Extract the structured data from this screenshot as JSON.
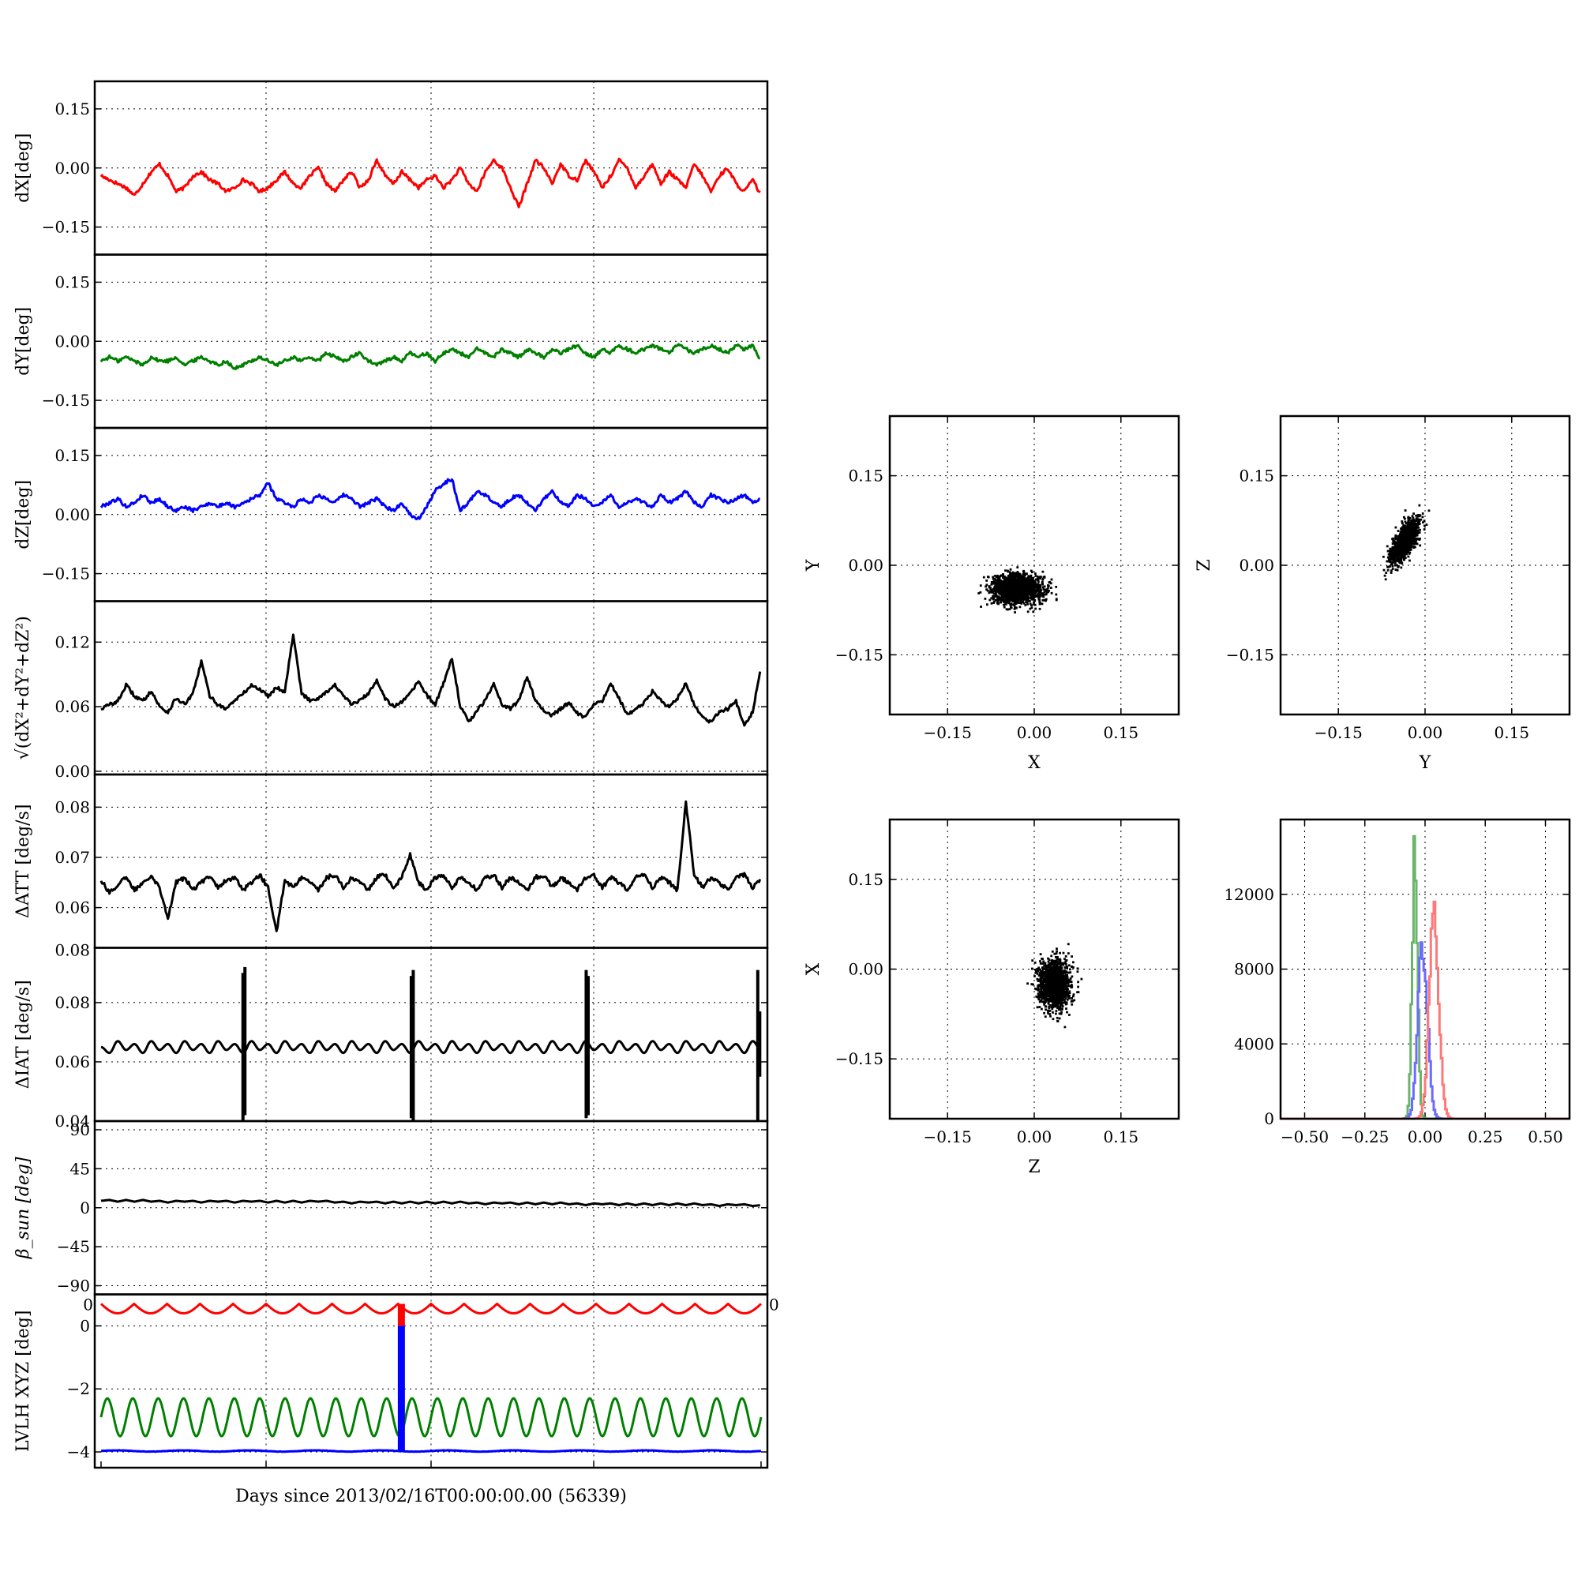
{
  "chart_data": [
    {
      "id": "dx",
      "type": "line",
      "ylabel": "dX[deg]",
      "ylim": [
        -0.22,
        0.22
      ],
      "yticks": [
        0.15,
        0.0,
        -0.15
      ],
      "ytick_labels": [
        "0.15",
        "0.00",
        "−0.15"
      ],
      "grid": true,
      "series": [
        {
          "color": "#ff0000",
          "values": [
            -0.02,
            -0.03,
            -0.04,
            -0.05,
            -0.07,
            -0.04,
            -0.01,
            0.01,
            -0.02,
            -0.06,
            -0.05,
            -0.02,
            -0.01,
            -0.03,
            -0.04,
            -0.06,
            -0.05,
            -0.03,
            -0.04,
            -0.06,
            -0.05,
            -0.03,
            -0.01,
            -0.04,
            -0.05,
            -0.02,
            0.0,
            -0.04,
            -0.06,
            -0.03,
            -0.01,
            -0.05,
            -0.03,
            0.02,
            -0.02,
            -0.04,
            -0.01,
            -0.03,
            -0.05,
            -0.03,
            -0.02,
            -0.05,
            -0.03,
            0.0,
            -0.04,
            -0.06,
            -0.01,
            0.02,
            0.0,
            -0.05,
            -0.1,
            -0.04,
            0.02,
            0.0,
            -0.04,
            0.01,
            -0.02,
            -0.03,
            0.02,
            -0.01,
            -0.05,
            -0.02,
            0.02,
            0.0,
            -0.05,
            -0.02,
            0.01,
            -0.04,
            -0.01,
            -0.03,
            -0.05,
            0.01,
            -0.02,
            -0.06,
            -0.02,
            0.0,
            -0.04,
            -0.06,
            -0.03,
            -0.07
          ]
        }
      ]
    },
    {
      "id": "dy",
      "type": "line",
      "ylabel": "dY[deg]",
      "ylim": [
        -0.22,
        0.22
      ],
      "yticks": [
        0.15,
        0.0,
        -0.15
      ],
      "ytick_labels": [
        "0.15",
        "0.00",
        "−0.15"
      ],
      "grid": true,
      "series": [
        {
          "color": "#008000",
          "values": [
            -0.05,
            -0.04,
            -0.05,
            -0.04,
            -0.05,
            -0.06,
            -0.04,
            -0.05,
            -0.05,
            -0.04,
            -0.06,
            -0.05,
            -0.04,
            -0.05,
            -0.06,
            -0.05,
            -0.07,
            -0.06,
            -0.05,
            -0.04,
            -0.05,
            -0.06,
            -0.05,
            -0.04,
            -0.05,
            -0.04,
            -0.05,
            -0.03,
            -0.04,
            -0.05,
            -0.04,
            -0.03,
            -0.05,
            -0.06,
            -0.05,
            -0.04,
            -0.05,
            -0.03,
            -0.04,
            -0.03,
            -0.05,
            -0.03,
            -0.02,
            -0.03,
            -0.04,
            -0.02,
            -0.03,
            -0.04,
            -0.02,
            -0.03,
            -0.04,
            -0.02,
            -0.03,
            -0.04,
            -0.02,
            -0.03,
            -0.02,
            -0.01,
            -0.03,
            -0.04,
            -0.02,
            -0.03,
            -0.01,
            -0.02,
            -0.03,
            -0.02,
            -0.01,
            -0.02,
            -0.03,
            -0.01,
            -0.02,
            -0.03,
            -0.02,
            -0.01,
            -0.02,
            -0.03,
            -0.01,
            -0.02,
            -0.01,
            -0.05
          ]
        }
      ]
    },
    {
      "id": "dz",
      "type": "line",
      "ylabel": "dZ[deg]",
      "ylim": [
        -0.22,
        0.22
      ],
      "yticks": [
        0.15,
        0.0,
        -0.15
      ],
      "ytick_labels": [
        "0.15",
        "0.00",
        "−0.15"
      ],
      "grid": true,
      "series": [
        {
          "color": "#0000ff",
          "values": [
            0.02,
            0.03,
            0.04,
            0.02,
            0.03,
            0.05,
            0.03,
            0.04,
            0.02,
            0.01,
            0.02,
            0.01,
            0.02,
            0.03,
            0.02,
            0.03,
            0.02,
            0.03,
            0.04,
            0.05,
            0.08,
            0.04,
            0.03,
            0.02,
            0.04,
            0.03,
            0.05,
            0.04,
            0.03,
            0.05,
            0.04,
            0.02,
            0.03,
            0.04,
            0.02,
            0.01,
            0.03,
            0.0,
            -0.01,
            0.02,
            0.06,
            0.08,
            0.09,
            0.01,
            0.03,
            0.06,
            0.05,
            0.03,
            0.02,
            0.04,
            0.05,
            0.03,
            0.01,
            0.04,
            0.06,
            0.03,
            0.02,
            0.05,
            0.04,
            0.02,
            0.03,
            0.05,
            0.02,
            0.03,
            0.04,
            0.03,
            0.02,
            0.05,
            0.03,
            0.04,
            0.06,
            0.03,
            0.02,
            0.05,
            0.04,
            0.03,
            0.04,
            0.05,
            0.03,
            0.04
          ]
        }
      ]
    },
    {
      "id": "mag",
      "type": "line",
      "ylabel": "√(dX²+dY²+dZ²)",
      "ylim": [
        -0.003,
        0.158
      ],
      "yticks": [
        0.12,
        0.06,
        0.0
      ],
      "ytick_labels": [
        "0.12",
        "0.06",
        "0.00"
      ],
      "grid": true,
      "series": [
        {
          "color": "#000000",
          "values": [
            0.058,
            0.062,
            0.065,
            0.08,
            0.07,
            0.065,
            0.075,
            0.06,
            0.055,
            0.068,
            0.062,
            0.072,
            0.102,
            0.07,
            0.062,
            0.058,
            0.066,
            0.072,
            0.08,
            0.076,
            0.07,
            0.078,
            0.074,
            0.128,
            0.072,
            0.066,
            0.068,
            0.074,
            0.08,
            0.07,
            0.062,
            0.066,
            0.072,
            0.085,
            0.068,
            0.06,
            0.064,
            0.072,
            0.084,
            0.07,
            0.062,
            0.082,
            0.105,
            0.06,
            0.046,
            0.056,
            0.066,
            0.082,
            0.062,
            0.058,
            0.066,
            0.088,
            0.066,
            0.056,
            0.052,
            0.058,
            0.064,
            0.054,
            0.05,
            0.062,
            0.065,
            0.082,
            0.068,
            0.052,
            0.058,
            0.064,
            0.074,
            0.066,
            0.06,
            0.068,
            0.082,
            0.062,
            0.05,
            0.046,
            0.055,
            0.058,
            0.065,
            0.042,
            0.055,
            0.098
          ]
        }
      ]
    },
    {
      "id": "datt",
      "type": "line",
      "ylabel": "ΔATT [deg/s]",
      "ylim": [
        0.052,
        0.0865
      ],
      "yticks": [
        0.08,
        0.07,
        0.06
      ],
      "ytick_labels": [
        "0.08",
        "0.07",
        "0.06"
      ],
      "grid": true,
      "series": [
        {
          "color": "#000000",
          "values": [
            0.0655,
            0.063,
            0.0645,
            0.066,
            0.0635,
            0.065,
            0.0665,
            0.064,
            0.058,
            0.065,
            0.066,
            0.0635,
            0.065,
            0.0665,
            0.064,
            0.0655,
            0.066,
            0.0635,
            0.065,
            0.0665,
            0.064,
            0.055,
            0.0655,
            0.064,
            0.066,
            0.065,
            0.0635,
            0.066,
            0.0665,
            0.064,
            0.066,
            0.065,
            0.0635,
            0.066,
            0.0665,
            0.064,
            0.066,
            0.0705,
            0.065,
            0.0635,
            0.066,
            0.0665,
            0.064,
            0.066,
            0.065,
            0.0635,
            0.066,
            0.0665,
            0.064,
            0.066,
            0.065,
            0.0635,
            0.066,
            0.0665,
            0.064,
            0.066,
            0.065,
            0.0635,
            0.066,
            0.0665,
            0.064,
            0.066,
            0.065,
            0.0635,
            0.066,
            0.0665,
            0.064,
            0.066,
            0.065,
            0.0635,
            0.081,
            0.0665,
            0.064,
            0.066,
            0.065,
            0.0635,
            0.066,
            0.0665,
            0.064,
            0.066
          ]
        }
      ]
    },
    {
      "id": "diat",
      "type": "line",
      "ylabel": "ΔIAT [deg/s]",
      "ylim": [
        0.04,
        0.0985
      ],
      "yticks": [
        0.08,
        0.06,
        0.04
      ],
      "ytick_labels": [
        "0.08",
        "0.06",
        "0.04"
      ],
      "grid": true,
      "overlap_label": "0.08",
      "series": [
        {
          "color": "#000000",
          "values": [
            0.065,
            0.063,
            0.067,
            0.064,
            0.066,
            0.063,
            0.067,
            0.064,
            0.066,
            0.063,
            0.067,
            0.064,
            0.066,
            0.063,
            0.067,
            0.064,
            0.066,
            0.063,
            0.067,
            0.064,
            0.066,
            0.063,
            0.067,
            0.064,
            0.066,
            0.063,
            0.067,
            0.064,
            0.066,
            0.063,
            0.067,
            0.064,
            0.066,
            0.063,
            0.067,
            0.064,
            0.066,
            0.063,
            0.067,
            0.064,
            0.066,
            0.063,
            0.067,
            0.064,
            0.066,
            0.063,
            0.067,
            0.064,
            0.066,
            0.063,
            0.067,
            0.064,
            0.066,
            0.063,
            0.067,
            0.064,
            0.066,
            0.063,
            0.067,
            0.064,
            0.066,
            0.063,
            0.067,
            0.064,
            0.066,
            0.063,
            0.067,
            0.064,
            0.066,
            0.063,
            0.067,
            0.064,
            0.066,
            0.063,
            0.067,
            0.064,
            0.066,
            0.063,
            0.067,
            0.064
          ]
        }
      ],
      "spikes": [
        {
          "x": 0.215,
          "low": 0.04,
          "high": 0.09
        },
        {
          "x": 0.218,
          "low": 0.042,
          "high": 0.092
        },
        {
          "x": 0.47,
          "low": 0.041,
          "high": 0.089
        },
        {
          "x": 0.473,
          "low": 0.04,
          "high": 0.091
        },
        {
          "x": 0.735,
          "low": 0.041,
          "high": 0.091
        },
        {
          "x": 0.738,
          "low": 0.042,
          "high": 0.089
        },
        {
          "x": 0.995,
          "low": 0.04,
          "high": 0.091
        },
        {
          "x": 0.998,
          "low": 0.055,
          "high": 0.077
        }
      ]
    },
    {
      "id": "beta",
      "type": "line",
      "ylabel": "β_sun [deg]",
      "ylim": [
        -100,
        100
      ],
      "yticks": [
        90,
        45,
        0,
        -45,
        -90
      ],
      "ytick_labels": [
        "90",
        "45",
        "0",
        "−45",
        "−90"
      ],
      "grid": true,
      "series": [
        {
          "color": "#000000",
          "values": [
            8,
            9,
            7,
            9,
            7,
            9,
            7,
            8,
            6,
            8,
            7,
            8,
            6,
            8,
            7,
            8,
            6,
            8,
            7,
            8,
            6,
            8,
            6,
            8,
            6,
            8,
            7,
            8,
            6,
            7,
            5,
            7,
            6,
            7,
            5,
            7,
            5,
            7,
            5,
            7,
            5,
            7,
            5,
            7,
            5,
            6,
            4,
            6,
            5,
            6,
            4,
            6,
            4,
            6,
            4,
            6,
            4,
            5,
            3,
            5,
            4,
            5,
            3,
            5,
            3,
            5,
            3,
            5,
            3,
            5,
            3,
            5,
            3,
            4,
            2,
            4,
            3,
            4,
            2,
            3
          ]
        }
      ]
    },
    {
      "id": "lvlh",
      "type": "line",
      "ylabel": "LVLH XYZ [deg]",
      "ylim": [
        -4.5,
        1.0
      ],
      "yticks": [
        0,
        -2,
        -4
      ],
      "ytick_labels": [
        "0",
        "−2",
        "−4"
      ],
      "overlap_left": "0",
      "overlap_right": "0",
      "xlabel": "Days since 2013/02/16T00:00:00.00 (56339)",
      "grid": true,
      "series": [
        {
          "color": "#ff0000",
          "shape": "ripple",
          "base": 0.7,
          "amp": 0.3,
          "cycles": 20
        },
        {
          "color": "#008000",
          "shape": "sine",
          "base": -2.9,
          "amp": 0.6,
          "cycles": 26
        },
        {
          "color": "#0000ff",
          "shape": "flat",
          "base": -3.97,
          "amp": 0.02,
          "cycles": 10
        }
      ],
      "glitch": {
        "x": 0.455,
        "red": [
          0.0,
          0.7
        ],
        "blue": [
          -4.0,
          0.0
        ]
      }
    },
    {
      "id": "xy",
      "type": "scatter",
      "xlabel": "X",
      "ylabel": "Y",
      "xlim": [
        -0.25,
        0.25
      ],
      "ylim": [
        -0.25,
        0.25
      ],
      "xticks": [
        -0.15,
        0.0,
        0.15
      ],
      "xtick_labels": [
        "−0.15",
        "0.00",
        "0.15"
      ],
      "yticks": [
        0.15,
        0.0,
        -0.15
      ],
      "ytick_labels": [
        "0.15",
        "0.00",
        "−0.15"
      ],
      "grid": true,
      "cloud": {
        "cx": -0.03,
        "cy": -0.04,
        "sx": 0.022,
        "sy": 0.012,
        "rho": 0.0,
        "n": 1600
      }
    },
    {
      "id": "yz",
      "type": "scatter",
      "xlabel": "Y",
      "ylabel": "Z",
      "xlim": [
        -0.25,
        0.25
      ],
      "ylim": [
        -0.25,
        0.25
      ],
      "xticks": [
        -0.15,
        0.0,
        0.15
      ],
      "xtick_labels": [
        "−0.15",
        "0.00",
        "0.15"
      ],
      "yticks": [
        0.15,
        0.0,
        -0.15
      ],
      "ytick_labels": [
        "0.15",
        "0.00",
        "−0.15"
      ],
      "grid": true,
      "cloud": {
        "cx": -0.035,
        "cy": 0.04,
        "sx": 0.012,
        "sy": 0.018,
        "rho": 0.7,
        "n": 1200
      }
    },
    {
      "id": "zx",
      "type": "scatter",
      "xlabel": "Z",
      "ylabel": "X",
      "xlim": [
        -0.25,
        0.25
      ],
      "ylim": [
        -0.25,
        0.25
      ],
      "xticks": [
        -0.15,
        0.0,
        0.15
      ],
      "xtick_labels": [
        "−0.15",
        "0.00",
        "0.15"
      ],
      "yticks": [
        0.15,
        0.0,
        -0.15
      ],
      "ytick_labels": [
        "0.15",
        "0.00",
        "−0.15"
      ],
      "grid": true,
      "cloud": {
        "cx": 0.035,
        "cy": -0.025,
        "sx": 0.013,
        "sy": 0.02,
        "rho": 0.0,
        "n": 1400
      }
    },
    {
      "id": "hist",
      "type": "line",
      "subtype": "histogram",
      "xlim": [
        -0.6,
        0.6
      ],
      "ylim": [
        0,
        16000
      ],
      "xticks": [
        -0.5,
        -0.25,
        0.0,
        0.25,
        0.5
      ],
      "xtick_labels": [
        "−0.50",
        "−0.25",
        "0.00",
        "0.25",
        "0.50"
      ],
      "yticks": [
        12000,
        8000,
        4000,
        0
      ],
      "ytick_labels": [
        "12000",
        "8000",
        "4000",
        "0"
      ],
      "grid": true,
      "series": [
        {
          "color": "#6ab56a",
          "mu": -0.045,
          "sigma": 0.011,
          "peak": 14800
        },
        {
          "color": "#6b6bff",
          "mu": -0.012,
          "sigma": 0.02,
          "peak": 9200
        },
        {
          "color": "#ff7878",
          "mu": 0.035,
          "sigma": 0.02,
          "peak": 10900
        }
      ]
    }
  ]
}
